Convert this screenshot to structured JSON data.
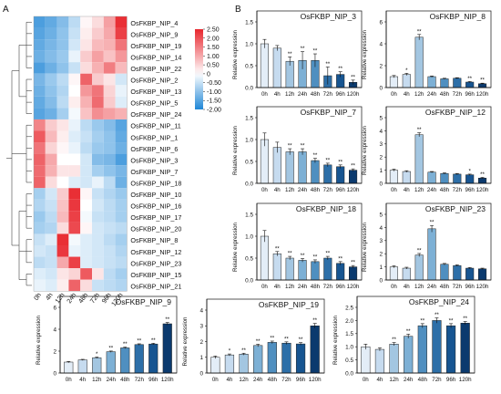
{
  "panel_letters": {
    "a": "A",
    "b": "B"
  },
  "chart_data": [
    {
      "type": "heatmap",
      "columns": [
        "0h",
        "4h",
        "12h",
        "24h",
        "48h",
        "72h",
        "96h",
        "120h"
      ],
      "rows": [
        "OsFKBP_NIP_4",
        "OsFKBP_NIP_9",
        "OsFKBP_NIP_19",
        "OsFKBP_NIP_14",
        "OsFKBP_NIP_22",
        "OsFKBP_NIP_2",
        "OsFKBP_NIP_13",
        "OsFKBP_NIP_5",
        "OsFKBP_NIP_24",
        "OsFKBP_NIP_11",
        "OsFKBP_NIP_1",
        "OsFKBP_NIP_6",
        "OsFKBP_NIP_3",
        "OsFKBP_NIP_7",
        "OsFKBP_NIP_18",
        "OsFKBP_NIP_10",
        "OsFKBP_NIP_16",
        "OsFKBP_NIP_17",
        "OsFKBP_NIP_20",
        "OsFKBP_NIP_8",
        "OsFKBP_NIP_12",
        "OsFKBP_NIP_23",
        "OsFKBP_NIP_15",
        "OsFKBP_NIP_21"
      ],
      "values": [
        [
          -1.6,
          -1.4,
          -1.1,
          -0.6,
          0.1,
          0.4,
          1.1,
          2.4
        ],
        [
          -1.5,
          -1.3,
          -1.0,
          -0.5,
          0.2,
          0.6,
          1.0,
          2.2
        ],
        [
          -1.4,
          -1.2,
          -1.0,
          -0.4,
          0.3,
          0.8,
          0.9,
          1.6
        ],
        [
          -1.3,
          -1.1,
          -0.9,
          -0.2,
          0.6,
          1.1,
          0.7,
          1.2
        ],
        [
          -1.6,
          -1.3,
          -1.0,
          -0.5,
          0.4,
          0.9,
          1.5,
          0.8
        ],
        [
          -1.2,
          -0.9,
          -0.6,
          0.1,
          1.8,
          0.6,
          0.3,
          -0.4
        ],
        [
          -1.3,
          -1.0,
          -0.7,
          0.0,
          1.2,
          1.6,
          0.5,
          -0.2
        ],
        [
          -1.4,
          -1.1,
          -0.6,
          0.2,
          0.9,
          1.7,
          0.6,
          -0.3
        ],
        [
          -1.5,
          -1.3,
          -0.8,
          -0.1,
          0.7,
          1.3,
          1.1,
          0.9
        ],
        [
          1.4,
          0.6,
          0.3,
          -0.2,
          -0.6,
          -0.9,
          -1.1,
          -1.5
        ],
        [
          1.9,
          0.8,
          0.2,
          -0.3,
          -0.5,
          -0.8,
          -1.0,
          -1.4
        ],
        [
          1.6,
          0.5,
          0.1,
          -0.2,
          -0.6,
          -0.9,
          -1.0,
          -1.3
        ],
        [
          1.8,
          1.0,
          0.0,
          0.0,
          -0.4,
          -1.1,
          -1.2,
          -1.6
        ],
        [
          1.7,
          0.9,
          0.3,
          0.3,
          -0.4,
          -0.8,
          -1.0,
          -1.2
        ],
        [
          1.8,
          0.4,
          0.0,
          -0.3,
          -0.4,
          -0.2,
          -0.6,
          -1.3
        ],
        [
          -0.8,
          -0.4,
          0.6,
          2.4,
          0.1,
          -0.5,
          -0.7,
          -0.9
        ],
        [
          -0.7,
          -0.5,
          0.7,
          2.3,
          0.0,
          -0.4,
          -0.6,
          -0.8
        ],
        [
          -0.9,
          -0.6,
          0.8,
          2.2,
          -0.1,
          -0.5,
          -0.6,
          -0.8
        ],
        [
          -0.8,
          -0.7,
          0.4,
          2.1,
          0.1,
          -0.4,
          -0.5,
          -0.6
        ],
        [
          -0.5,
          -0.3,
          2.4,
          -0.1,
          -0.3,
          -0.4,
          -0.6,
          -0.8
        ],
        [
          -0.4,
          -0.5,
          2.3,
          -0.2,
          -0.3,
          -0.4,
          -0.5,
          -0.7
        ],
        [
          -0.6,
          -0.5,
          1.0,
          2.2,
          -0.3,
          -0.4,
          -0.5,
          -0.6
        ],
        [
          -0.3,
          -0.4,
          0.3,
          0.5,
          1.9,
          0.3,
          -0.6,
          -0.8
        ],
        [
          -0.2,
          -0.3,
          0.2,
          1.8,
          0.4,
          -0.5,
          -0.6,
          -0.7
        ]
      ],
      "legend": {
        "ticks": [
          2.5,
          2.0,
          1.5,
          1.0,
          0.5,
          0,
          -0.5,
          -1.0,
          -1.5,
          -2.0
        ],
        "tick_labels": [
          "2.50",
          "2.00",
          "1.50",
          "1.00",
          "0.50",
          "0",
          "-0.50",
          "-1.00",
          "-1.50",
          "-2.00"
        ],
        "range": [
          -2.0,
          2.5
        ]
      },
      "colors": {
        "low": "#1f86d6",
        "mid": "#ffffff",
        "high": "#e8262d"
      },
      "legend_placement": "right"
    },
    {
      "type": "bar",
      "title": "OsFKBP_NIP_3",
      "ylabel": "Relative expression",
      "categories": [
        "0h",
        "4h",
        "12h",
        "24h",
        "48h",
        "72h",
        "96h",
        "120h"
      ],
      "values": [
        1.0,
        0.9,
        0.6,
        0.62,
        0.62,
        0.27,
        0.3,
        0.12
      ],
      "errors": [
        0.1,
        0.06,
        0.1,
        0.2,
        0.15,
        0.2,
        0.06,
        0.05
      ],
      "ylim": [
        0,
        1.5
      ],
      "yticks": [
        0,
        0.5,
        1.0,
        1.5
      ],
      "ytick_labels": [
        "0.0",
        "0.5",
        "1.0",
        "1.5"
      ],
      "sig": [
        "",
        "",
        "**",
        "**",
        "**",
        "**",
        "**",
        "**"
      ]
    },
    {
      "type": "bar",
      "title": "OsFKBP_NIP_8",
      "ylabel": "Relative expression",
      "categories": [
        "0h",
        "4h",
        "12h",
        "24h",
        "48h",
        "72h",
        "96h",
        "120h"
      ],
      "values": [
        1.0,
        1.2,
        4.6,
        1.0,
        0.8,
        0.85,
        0.5,
        0.35
      ],
      "errors": [
        0.1,
        0.1,
        0.25,
        0.06,
        0.05,
        0.05,
        0.05,
        0.05
      ],
      "ylim": [
        0,
        6
      ],
      "yticks": [
        0,
        2,
        4,
        6
      ],
      "ytick_labels": [
        "0",
        "2",
        "4",
        "6"
      ],
      "sig": [
        "",
        "*",
        "**",
        "",
        "",
        "",
        "**",
        "**"
      ]
    },
    {
      "type": "bar",
      "title": "OsFKBP_NIP_7",
      "ylabel": "Relative expression",
      "categories": [
        "0h",
        "4h",
        "12h",
        "24h",
        "48h",
        "72h",
        "96h",
        "120h"
      ],
      "values": [
        1.0,
        0.82,
        0.72,
        0.72,
        0.52,
        0.42,
        0.38,
        0.3
      ],
      "errors": [
        0.15,
        0.12,
        0.07,
        0.07,
        0.05,
        0.04,
        0.04,
        0.03
      ],
      "ylim": [
        0,
        1.5
      ],
      "yticks": [
        0,
        0.5,
        1.0,
        1.5
      ],
      "ytick_labels": [
        "0.0",
        "0.5",
        "1.0",
        "1.5"
      ],
      "sig": [
        "",
        "",
        "**",
        "**",
        "**",
        "**",
        "**",
        "**"
      ]
    },
    {
      "type": "bar",
      "title": "OsFKBP_NIP_12",
      "ylabel": "Relative expression",
      "categories": [
        "0h",
        "4h",
        "12h",
        "24h",
        "48h",
        "72h",
        "96h",
        "120h"
      ],
      "values": [
        1.0,
        0.9,
        3.7,
        0.85,
        0.75,
        0.7,
        0.65,
        0.4
      ],
      "errors": [
        0.08,
        0.06,
        0.15,
        0.05,
        0.05,
        0.05,
        0.05,
        0.05
      ],
      "ylim": [
        0,
        5
      ],
      "yticks": [
        0,
        1,
        2,
        3,
        4,
        5
      ],
      "ytick_labels": [
        "0",
        "1",
        "2",
        "3",
        "4",
        "5"
      ],
      "sig": [
        "",
        "",
        "**",
        "",
        "",
        "",
        "*",
        "**"
      ]
    },
    {
      "type": "bar",
      "title": "OsFKBP_NIP_18",
      "ylabel": "Relative expression",
      "categories": [
        "0h",
        "4h",
        "12h",
        "24h",
        "48h",
        "72h",
        "96h",
        "120h"
      ],
      "values": [
        1.0,
        0.6,
        0.5,
        0.45,
        0.42,
        0.5,
        0.38,
        0.3
      ],
      "errors": [
        0.13,
        0.05,
        0.04,
        0.04,
        0.04,
        0.04,
        0.04,
        0.03
      ],
      "ylim": [
        0,
        1.5
      ],
      "yticks": [
        0,
        0.5,
        1.0,
        1.5
      ],
      "ytick_labels": [
        "0.0",
        "0.5",
        "1.0",
        "1.5"
      ],
      "sig": [
        "",
        "**",
        "**",
        "**",
        "**",
        "**",
        "**",
        "**"
      ]
    },
    {
      "type": "bar",
      "title": "OsFKBP_NIP_23",
      "ylabel": "Relative expression",
      "categories": [
        "0h",
        "4h",
        "12h",
        "24h",
        "48h",
        "72h",
        "96h",
        "120h"
      ],
      "values": [
        1.0,
        0.9,
        1.9,
        3.9,
        1.2,
        1.1,
        0.9,
        0.85
      ],
      "errors": [
        0.08,
        0.07,
        0.12,
        0.25,
        0.06,
        0.06,
        0.05,
        0.05
      ],
      "ylim": [
        0,
        5
      ],
      "yticks": [
        0,
        1,
        2,
        3,
        4,
        5
      ],
      "ytick_labels": [
        "0",
        "1",
        "2",
        "3",
        "4",
        "5"
      ],
      "sig": [
        "",
        "",
        "**",
        "**",
        "",
        "",
        "",
        ""
      ]
    },
    {
      "type": "bar",
      "title": "OsFKBP_NIP_9",
      "ylabel": "Relative expression",
      "categories": [
        "0h",
        "4h",
        "12h",
        "24h",
        "48h",
        "72h",
        "96h",
        "120h"
      ],
      "values": [
        1.0,
        1.2,
        1.4,
        1.95,
        2.3,
        2.6,
        2.65,
        4.5
      ],
      "errors": [
        0.06,
        0.05,
        0.06,
        0.06,
        0.07,
        0.07,
        0.07,
        0.12
      ],
      "ylim": [
        0,
        6
      ],
      "yticks": [
        0,
        2,
        4,
        6
      ],
      "ytick_labels": [
        "0",
        "2",
        "4",
        "6"
      ],
      "sig": [
        "",
        "",
        "*",
        "**",
        "**",
        "**",
        "**",
        "**"
      ]
    },
    {
      "type": "bar",
      "title": "OsFKBP_NIP_19",
      "ylabel": "Relative expression",
      "categories": [
        "0h",
        "4h",
        "12h",
        "24h",
        "48h",
        "72h",
        "96h",
        "120h"
      ],
      "values": [
        1.0,
        1.15,
        1.2,
        1.75,
        1.95,
        1.9,
        1.85,
        3.0
      ],
      "errors": [
        0.08,
        0.06,
        0.06,
        0.08,
        0.08,
        0.08,
        0.08,
        0.15
      ],
      "ylim": [
        0,
        4
      ],
      "yticks": [
        0,
        1,
        2,
        3,
        4
      ],
      "ytick_labels": [
        "0",
        "1",
        "2",
        "3",
        "4"
      ],
      "sig": [
        "",
        "*",
        "**",
        "**",
        "**",
        "**",
        "**",
        "**"
      ]
    },
    {
      "type": "bar",
      "title": "OsFKBP_NIP_24",
      "ylabel": "Relative expression",
      "categories": [
        "0h",
        "4h",
        "12h",
        "24h",
        "48h",
        "72h",
        "96h",
        "120h"
      ],
      "values": [
        1.0,
        0.9,
        1.1,
        1.4,
        1.8,
        2.0,
        1.8,
        1.9
      ],
      "errors": [
        0.1,
        0.06,
        0.06,
        0.08,
        0.08,
        0.1,
        0.08,
        0.06
      ],
      "ylim": [
        0,
        2.5
      ],
      "yticks": [
        0,
        0.5,
        1.0,
        1.5,
        2.0,
        2.5
      ],
      "ytick_labels": [
        "0.0",
        "0.5",
        "1.0",
        "1.5",
        "2.0",
        "2.5"
      ],
      "sig": [
        "",
        "",
        "**",
        "**",
        "**",
        "**",
        "**",
        "**"
      ]
    }
  ],
  "bar_colors": [
    "#e3edf7",
    "#c6dbef",
    "#a3c6e1",
    "#7db0d5",
    "#4f8fc0",
    "#2d6fa8",
    "#175591",
    "#0b3a6e"
  ],
  "bar_stroke": "#222222"
}
